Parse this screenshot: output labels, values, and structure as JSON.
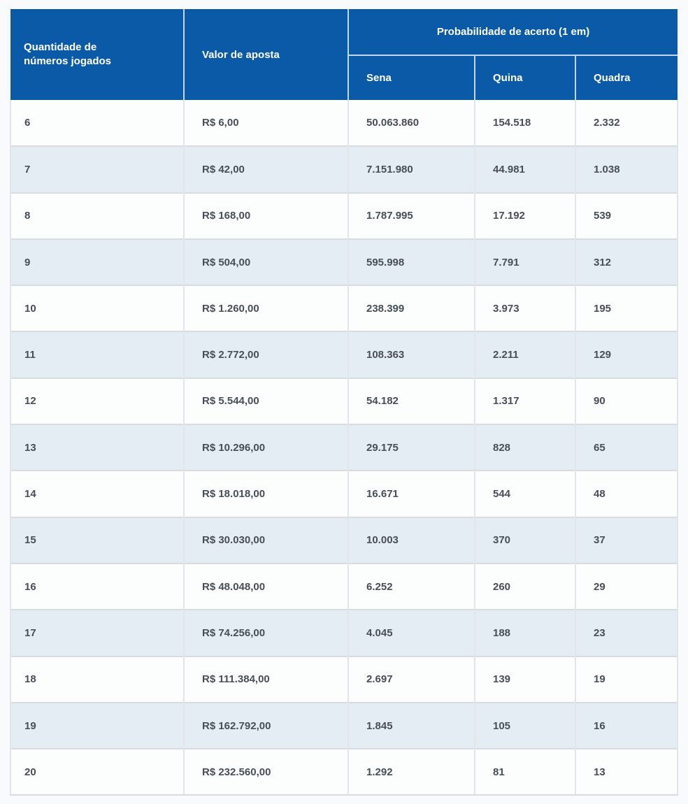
{
  "colors": {
    "header_bg": "#0b5aa7",
    "header_text": "#ffffff",
    "header_divider": "#c2d8ea",
    "row_even_bg": "#fcfdfd",
    "row_odd_bg": "#e4edf4",
    "body_text": "#474e57",
    "cell_divider": "#e3e6e8",
    "row_border": "#d9dcde",
    "page_bg": "#f8fafb"
  },
  "chart_data": {
    "type": "table",
    "title": "",
    "header": {
      "quantity": "Quantidade de números jogados",
      "bet_value": "Valor de aposta",
      "probability_group": "Probabilidade de acerto (1 em)",
      "sena": "Sena",
      "quina": "Quina",
      "quadra": "Quadra"
    },
    "columns": [
      "Quantidade de números jogados",
      "Valor de aposta",
      "Sena",
      "Quina",
      "Quadra"
    ],
    "rows": [
      [
        "6",
        "R$ 6,00",
        "50.063.860",
        "154.518",
        "2.332"
      ],
      [
        "7",
        "R$ 42,00",
        "7.151.980",
        "44.981",
        "1.038"
      ],
      [
        "8",
        "R$ 168,00",
        "1.787.995",
        "17.192",
        "539"
      ],
      [
        "9",
        "R$ 504,00",
        "595.998",
        "7.791",
        "312"
      ],
      [
        "10",
        "R$ 1.260,00",
        "238.399",
        "3.973",
        "195"
      ],
      [
        "11",
        "R$ 2.772,00",
        "108.363",
        "2.211",
        "129"
      ],
      [
        "12",
        "R$ 5.544,00",
        "54.182",
        "1.317",
        "90"
      ],
      [
        "13",
        "R$ 10.296,00",
        "29.175",
        "828",
        "65"
      ],
      [
        "14",
        "R$ 18.018,00",
        "16.671",
        "544",
        "48"
      ],
      [
        "15",
        "R$ 30.030,00",
        "10.003",
        "370",
        "37"
      ],
      [
        "16",
        "R$ 48.048,00",
        "6.252",
        "260",
        "29"
      ],
      [
        "17",
        "R$ 74.256,00",
        "4.045",
        "188",
        "23"
      ],
      [
        "18",
        "R$ 111.384,00",
        "2.697",
        "139",
        "19"
      ],
      [
        "19",
        "R$ 162.792,00",
        "1.845",
        "105",
        "16"
      ],
      [
        "20",
        "R$ 232.560,00",
        "1.292",
        "81",
        "13"
      ]
    ]
  }
}
